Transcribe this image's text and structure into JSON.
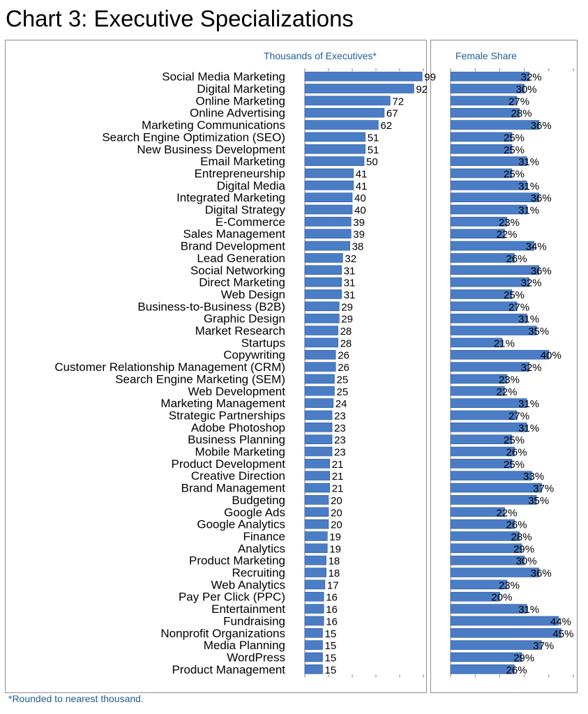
{
  "title": "Chart 3: Executive Specializations",
  "footnote": "*Rounded to nearest thousand.",
  "colors": {
    "bar": "#4a7dc5",
    "bar_edge": "#2e5a96",
    "header_text": "#1f5c99",
    "tick": "#7f7f7f"
  },
  "chart_data": [
    {
      "type": "bar",
      "orientation": "horizontal",
      "header": "Thousands of Executives*",
      "categories": [
        "Social Media Marketing",
        "Digital Marketing",
        "Online Marketing",
        "Online Advertising",
        "Marketing Communications",
        "Search Engine Optimization (SEO)",
        "New Business Development",
        "Email Marketing",
        "Entrepreneurship",
        "Digital Media",
        "Integrated Marketing",
        "Digital Strategy",
        "E-Commerce",
        "Sales Management",
        "Brand Development",
        "Lead Generation",
        "Social Networking",
        "Direct Marketing",
        "Web Design",
        "Business-to-Business (B2B)",
        "Graphic Design",
        "Market Research",
        "Startups",
        "Copywriting",
        "Customer Relationship Management (CRM)",
        "Search Engine Marketing (SEM)",
        "Web Development",
        "Marketing Management",
        "Strategic Partnerships",
        "Adobe Photoshop",
        "Business Planning",
        "Mobile Marketing",
        "Product Development",
        "Creative Direction",
        "Brand Management",
        "Budgeting",
        "Google Ads",
        "Google Analytics",
        "Finance",
        "Analytics",
        "Product Marketing",
        "Recruiting",
        "Web Analytics",
        "Pay Per Click (PPC)",
        "Entertainment",
        "Fundraising",
        "Nonprofit Organizations",
        "Media Planning",
        "WordPress",
        "Product Management"
      ],
      "values": [
        99,
        92,
        72,
        67,
        62,
        51,
        51,
        50,
        41,
        41,
        40,
        40,
        39,
        39,
        38,
        32,
        31,
        31,
        31,
        29,
        29,
        28,
        28,
        26,
        26,
        25,
        25,
        24,
        23,
        23,
        23,
        23,
        21,
        21,
        21,
        20,
        20,
        20,
        19,
        19,
        18,
        18,
        17,
        16,
        16,
        16,
        15,
        15,
        15,
        15
      ],
      "data_labels": [
        "99",
        "92",
        "72",
        "67",
        "62",
        "51",
        "51",
        "50",
        "41",
        "41",
        "40",
        "40",
        "39",
        "39",
        "38",
        "32",
        "31",
        "31",
        "31",
        "29",
        "29",
        "28",
        "28",
        "26",
        "26",
        "25",
        "25",
        "24",
        "23",
        "23",
        "23",
        "23",
        "21",
        "21",
        "21",
        "20",
        "20",
        "20",
        "19",
        "19",
        "18",
        "18",
        "17",
        "16",
        "16",
        "16",
        "15",
        "15",
        "15",
        "15"
      ],
      "xlim": [
        0,
        100
      ],
      "grid": false
    },
    {
      "type": "bar",
      "orientation": "horizontal",
      "header": "Female Share",
      "values": [
        32,
        30,
        27,
        28,
        36,
        25,
        25,
        31,
        25,
        31,
        36,
        31,
        23,
        22,
        34,
        26,
        36,
        32,
        25,
        27,
        31,
        35,
        21,
        40,
        32,
        23,
        22,
        31,
        27,
        31,
        25,
        26,
        25,
        33,
        37,
        35,
        22,
        26,
        28,
        29,
        30,
        36,
        23,
        20,
        31,
        44,
        45,
        37,
        29,
        26
      ],
      "data_labels": [
        "32%",
        "30%",
        "27%",
        "28%",
        "36%",
        "25%",
        "25%",
        "31%",
        "25%",
        "31%",
        "36%",
        "31%",
        "23%",
        "22%",
        "34%",
        "26%",
        "36%",
        "32%",
        "25%",
        "27%",
        "31%",
        "35%",
        "21%",
        "40%",
        "32%",
        "23%",
        "22%",
        "31%",
        "27%",
        "31%",
        "25%",
        "26%",
        "25%",
        "33%",
        "37%",
        "35%",
        "22%",
        "26%",
        "28%",
        "29%",
        "30%",
        "36%",
        "23%",
        "20%",
        "31%",
        "44%",
        "45%",
        "37%",
        "29%",
        "26%"
      ],
      "xlim": [
        0,
        50
      ],
      "grid": false
    }
  ]
}
